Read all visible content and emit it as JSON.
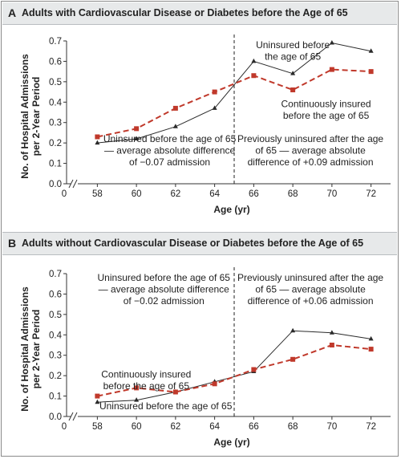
{
  "chart_data": [
    {
      "type": "line",
      "panel_letter": "A",
      "title": "Adults with Cardiovascular Disease or Diabetes before the Age of 65",
      "xlabel": "Age (yr)",
      "ylabel": [
        "No. of Hospital Admissions",
        "per 2-Year Period"
      ],
      "x_ticks": [
        "0",
        "58",
        "60",
        "62",
        "64",
        "66",
        "68",
        "70",
        "72"
      ],
      "y_ticks": [
        "0.0",
        "0.1",
        "0.2",
        "0.3",
        "0.4",
        "0.5",
        "0.6",
        "0.7"
      ],
      "xlim": [
        57,
        73
      ],
      "ylim": [
        0,
        0.7
      ],
      "vline_at": 65,
      "x": [
        58,
        60,
        62,
        64,
        66,
        68,
        70,
        72
      ],
      "series": [
        {
          "key": "uninsured",
          "style": "solid-triangle",
          "color": "#2a2a2a",
          "values": [
            0.2,
            0.22,
            0.28,
            0.37,
            0.6,
            0.54,
            0.69,
            0.65
          ]
        },
        {
          "key": "insured",
          "style": "dashed-square",
          "color": "#c0392b",
          "values": [
            0.23,
            0.27,
            0.37,
            0.45,
            0.53,
            0.46,
            0.56,
            0.55
          ]
        }
      ],
      "annotations": [
        {
          "lines": [
            "Uninsured before",
            "the age of 65"
          ],
          "x": 68,
          "y": 0.665,
          "anchor": "middle"
        },
        {
          "lines": [
            "Continuously insured",
            "before the age of 65"
          ],
          "x": 69.7,
          "y": 0.375,
          "anchor": "middle"
        },
        {
          "lines": [
            "Uninsured before the age of 65",
            "— average absolute difference",
            "of −0.07 admission"
          ],
          "x": 61.7,
          "y": 0.205,
          "anchor": "middle"
        },
        {
          "lines": [
            "Previously uninsured after the age",
            "of 65 — average absolute",
            "difference of +0.09 admission"
          ],
          "x": 68.9,
          "y": 0.205,
          "anchor": "middle"
        }
      ]
    },
    {
      "type": "line",
      "panel_letter": "B",
      "title": "Adults without Cardiovascular Disease or Diabetes before the Age of 65",
      "xlabel": "Age (yr)",
      "ylabel": [
        "No. of Hospital Admissions",
        "per 2-Year Period"
      ],
      "x_ticks": [
        "0",
        "58",
        "60",
        "62",
        "64",
        "66",
        "68",
        "70",
        "72"
      ],
      "y_ticks": [
        "0.0",
        "0.1",
        "0.2",
        "0.3",
        "0.4",
        "0.5",
        "0.6",
        "0.7"
      ],
      "xlim": [
        57,
        73
      ],
      "ylim": [
        0,
        0.7
      ],
      "vline_at": 65,
      "x": [
        58,
        60,
        62,
        64,
        66,
        68,
        70,
        72
      ],
      "series": [
        {
          "key": "uninsured",
          "style": "solid-triangle",
          "color": "#2a2a2a",
          "values": [
            0.07,
            0.08,
            0.12,
            0.17,
            0.22,
            0.42,
            0.41,
            0.38
          ]
        },
        {
          "key": "insured",
          "style": "dashed-square",
          "color": "#c0392b",
          "values": [
            0.1,
            0.14,
            0.12,
            0.16,
            0.23,
            0.28,
            0.35,
            0.33
          ]
        }
      ],
      "annotations": [
        {
          "lines": [
            "Uninsured before the age of 65",
            "— average absolute difference",
            "of −0.02 admission"
          ],
          "x": 61.4,
          "y": 0.665,
          "anchor": "middle"
        },
        {
          "lines": [
            "Previously uninsured after the age",
            "of 65 — average absolute",
            "difference of +0.06 admission"
          ],
          "x": 68.9,
          "y": 0.665,
          "anchor": "middle"
        },
        {
          "lines": [
            "Continuously insured",
            "before the age of 65"
          ],
          "x": 60.5,
          "y": 0.19,
          "anchor": "middle"
        },
        {
          "lines": [
            "Uninsured before the age of 65"
          ],
          "x": 61.5,
          "y": 0.035,
          "anchor": "middle"
        }
      ]
    }
  ]
}
